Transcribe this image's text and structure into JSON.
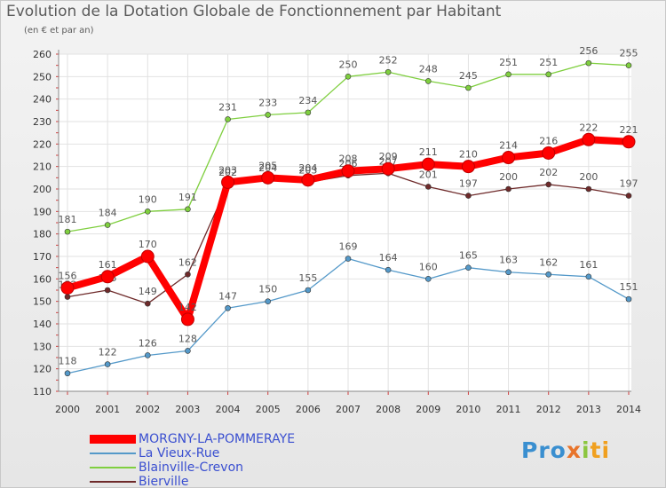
{
  "chart_data": {
    "type": "line",
    "title": "Evolution de la Dotation Globale de Fonctionnement par Habitant",
    "subtitle": "(en € et par an)",
    "x": [
      "2000",
      "2001",
      "2002",
      "2003",
      "2004",
      "2005",
      "2006",
      "2007",
      "2008",
      "2009",
      "2010",
      "2011",
      "2012",
      "2013",
      "2014"
    ],
    "ylim": [
      110,
      260
    ],
    "yticks": [
      110,
      120,
      130,
      140,
      150,
      160,
      170,
      180,
      190,
      200,
      210,
      220,
      230,
      240,
      250,
      260
    ],
    "grid": true,
    "legend_position": "bottom-left",
    "series": [
      {
        "name": "Blainville-Crevon",
        "color": "#7fcf3f",
        "values": [
          181,
          184,
          190,
          191,
          231,
          233,
          234,
          250,
          252,
          248,
          245,
          251,
          251,
          256,
          255
        ]
      },
      {
        "name": "La Vieux-Rue",
        "color": "#5499c9",
        "values": [
          118,
          122,
          126,
          128,
          147,
          150,
          155,
          169,
          164,
          160,
          165,
          163,
          162,
          161,
          151
        ]
      },
      {
        "name": "Bierville",
        "color": "#6e2a2a",
        "values": [
          152,
          155,
          149,
          162,
          202,
          204,
          203,
          206,
          207,
          201,
          197,
          200,
          202,
          200,
          197
        ]
      },
      {
        "name": "MORGNY-LA-POMMERAYE",
        "color": "#ff0000",
        "values": [
          156,
          161,
          170,
          142,
          203,
          205,
          204,
          208,
          209,
          211,
          210,
          214,
          216,
          222,
          221
        ]
      }
    ],
    "legend_order": [
      "MORGNY-LA-POMMERAYE",
      "La Vieux-Rue",
      "Blainville-Crevon",
      "Bierville"
    ]
  },
  "logo": {
    "p1": "Pro",
    "p2": "x",
    "p3": "i",
    "p4": "ti"
  }
}
